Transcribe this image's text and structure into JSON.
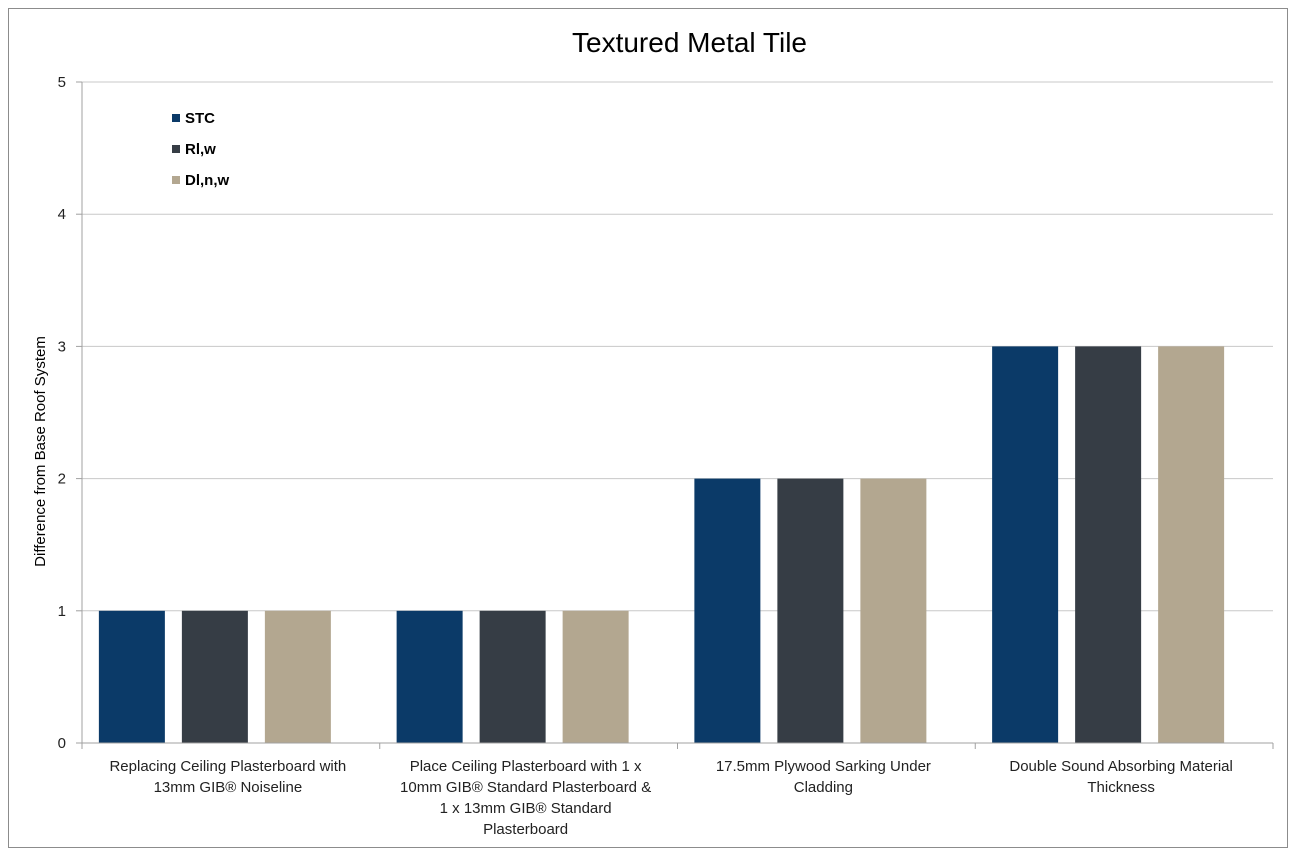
{
  "chart_data": {
    "type": "bar",
    "title": "Textured Metal Tile",
    "xlabel": "",
    "ylabel": "Difference from Base Roof  System",
    "ylim": [
      0,
      5
    ],
    "yticks": [
      0,
      1,
      2,
      3,
      4,
      5
    ],
    "grid": true,
    "legend_position": "top-left",
    "categories": [
      [
        "Replacing Ceiling Plasterboard with",
        "13mm GIB® Noiseline"
      ],
      [
        "Place Ceiling Plasterboard with 1 x",
        "10mm GIB® Standard Plasterboard &",
        "1 x 13mm GIB® Standard",
        "Plasterboard"
      ],
      [
        "17.5mm Plywood Sarking Under",
        "Cladding"
      ],
      [
        "Double Sound Absorbing Material",
        "Thickness"
      ]
    ],
    "series": [
      {
        "name": "STC",
        "color": "#0b3a68",
        "values": [
          1,
          1,
          2,
          3
        ]
      },
      {
        "name": "Rl,w",
        "color": "#363d45",
        "values": [
          1,
          1,
          2,
          3
        ]
      },
      {
        "name": "Dl,n,w",
        "color": "#b3a790",
        "values": [
          1,
          1,
          2,
          3
        ]
      }
    ]
  }
}
